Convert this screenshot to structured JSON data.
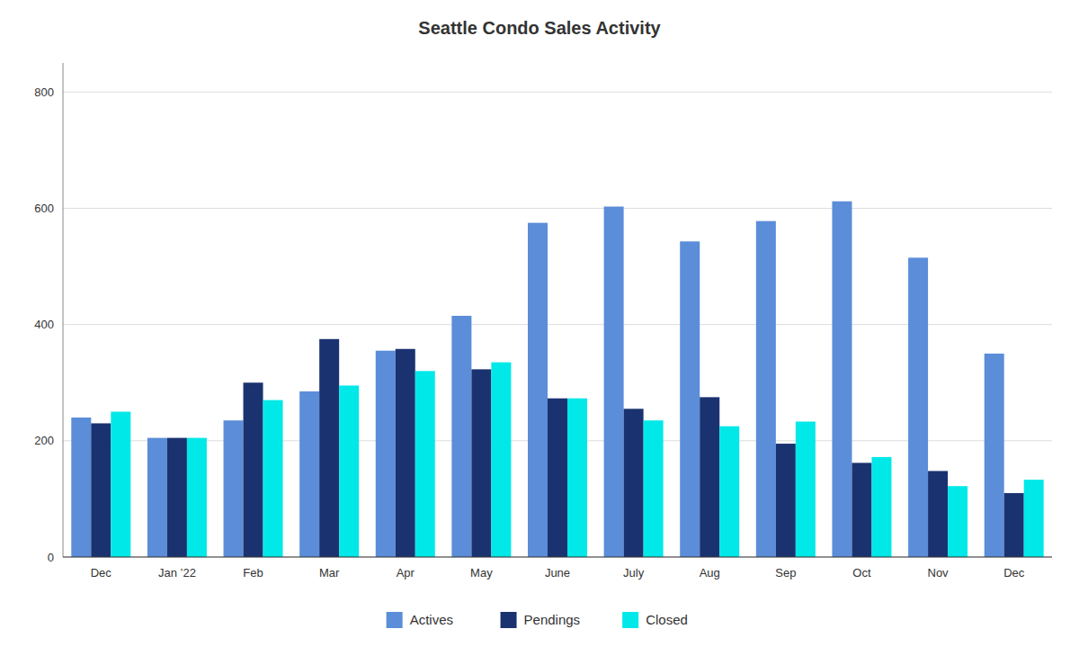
{
  "chart_data": {
    "type": "bar",
    "title": "Seattle Condo Sales Activity",
    "categories": [
      "Dec",
      "Jan ’22",
      "Feb",
      "Mar",
      "Apr",
      "May",
      "June",
      "July",
      "Aug",
      "Sep",
      "Oct",
      "Nov",
      "Dec"
    ],
    "series": [
      {
        "name": "Actives",
        "color": "#5b8dd9",
        "values": [
          240,
          205,
          235,
          285,
          355,
          415,
          575,
          603,
          543,
          578,
          612,
          515,
          350
        ]
      },
      {
        "name": "Pendings",
        "color": "#1b3270",
        "values": [
          230,
          205,
          300,
          375,
          358,
          323,
          273,
          255,
          275,
          195,
          162,
          148,
          110
        ]
      },
      {
        "name": "Closed",
        "color": "#00e8e8",
        "values": [
          250,
          205,
          270,
          295,
          320,
          335,
          273,
          235,
          225,
          233,
          172,
          122,
          133
        ]
      }
    ],
    "ylim": [
      0,
      850
    ],
    "yticks": [
      0,
      200,
      400,
      600,
      800
    ],
    "grid": true,
    "legend": "bottom"
  }
}
